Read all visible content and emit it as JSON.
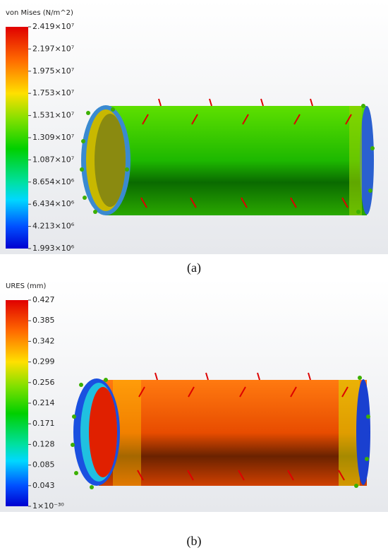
{
  "panels": [
    {
      "legend_title": "von Mises (N/m^2)",
      "legend_labels": [
        "2.419×10⁷",
        "2.197×10⁷",
        "1.975×10⁷",
        "1.753×10⁷",
        "1.531×10⁷",
        "1.309×10⁷",
        "1.087×10⁷",
        "8.654×10⁶",
        "6.434×10⁶",
        "4.213×10⁶",
        "1.993×10⁶"
      ],
      "caption": "(a)"
    },
    {
      "legend_title": "URES (mm)",
      "legend_labels": [
        "0.427",
        "0.385",
        "0.342",
        "0.299",
        "0.256",
        "0.214",
        "0.171",
        "0.128",
        "0.085",
        "0.043",
        "1×10⁻³⁰"
      ],
      "caption": "(b)"
    }
  ]
}
